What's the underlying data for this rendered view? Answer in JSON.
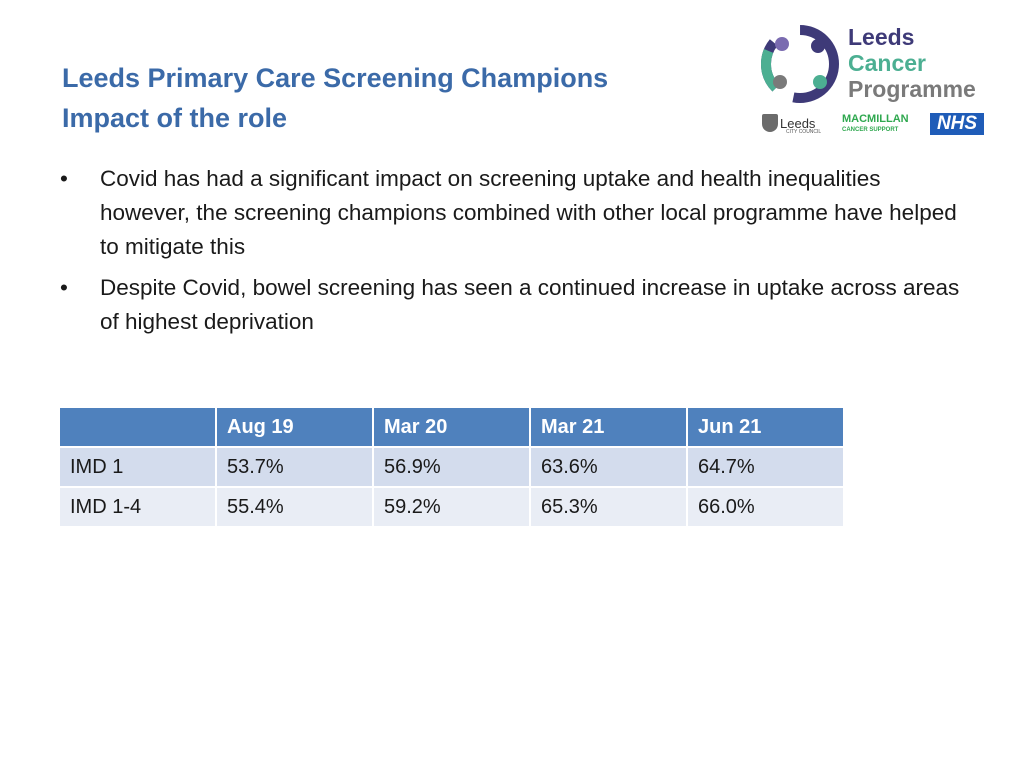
{
  "title": {
    "line1": "Leeds Primary Care Screening Champions",
    "line2": "Impact of the role"
  },
  "logo": {
    "line1": "Leeds",
    "line2": "Cancer",
    "line3": "Programme",
    "partners": {
      "council": "Leeds",
      "council_sub": "CITY COUNCIL",
      "macmillan": "MACMILLAN",
      "macmillan_sub": "CANCER SUPPORT",
      "nhs": "NHS"
    },
    "colors": {
      "navy": "#3e3a78",
      "green": "#4caf92",
      "grey": "#7a7a7a",
      "nhs_blue": "#1f5cb8",
      "macmillan_green": "#2fa84f"
    }
  },
  "bullets": [
    {
      "marker": "•",
      "text": "Covid has had a significant impact on screening uptake and health inequalities however, the screening champions combined with other local programme have helped to mitigate this"
    },
    {
      "marker": "•",
      "text": "Despite Covid, bowel screening has seen a continued increase in uptake across areas of highest deprivation"
    }
  ],
  "table": {
    "headers": [
      "",
      "Aug 19",
      "Mar 20",
      "Mar 21",
      "Jun 21"
    ],
    "rows": [
      [
        "IMD 1",
        "53.7%",
        "56.9%",
        "63.6%",
        "64.7%"
      ],
      [
        "IMD 1-4",
        "55.4%",
        "59.2%",
        "65.3%",
        "66.0%"
      ]
    ],
    "colors": {
      "header": "#4f81bd",
      "row_odd": "#d3dced",
      "row_even": "#e9edf5"
    }
  }
}
